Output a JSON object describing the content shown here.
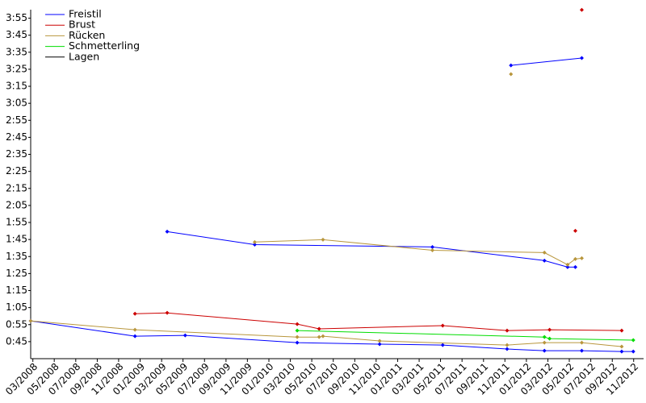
{
  "chart_data": {
    "type": "line",
    "xlim": [
      2008.15,
      2012.91
    ],
    "ylim": [
      35,
      240
    ],
    "xticks": [
      {
        "value": 2008.167,
        "label": "03/2008"
      },
      {
        "value": 2008.333,
        "label": "05/2008"
      },
      {
        "value": 2008.5,
        "label": "07/2008"
      },
      {
        "value": 2008.667,
        "label": "09/2008"
      },
      {
        "value": 2008.833,
        "label": "11/2008"
      },
      {
        "value": 2009.0,
        "label": "01/2009"
      },
      {
        "value": 2009.167,
        "label": "03/2009"
      },
      {
        "value": 2009.333,
        "label": "05/2009"
      },
      {
        "value": 2009.5,
        "label": "07/2009"
      },
      {
        "value": 2009.667,
        "label": "09/2009"
      },
      {
        "value": 2009.833,
        "label": "11/2009"
      },
      {
        "value": 2010.0,
        "label": "01/2010"
      },
      {
        "value": 2010.167,
        "label": "03/2010"
      },
      {
        "value": 2010.333,
        "label": "05/2010"
      },
      {
        "value": 2010.5,
        "label": "07/2010"
      },
      {
        "value": 2010.667,
        "label": "09/2010"
      },
      {
        "value": 2010.833,
        "label": "11/2010"
      },
      {
        "value": 2011.0,
        "label": "01/2011"
      },
      {
        "value": 2011.167,
        "label": "03/2011"
      },
      {
        "value": 2011.333,
        "label": "05/2011"
      },
      {
        "value": 2011.5,
        "label": "07/2011"
      },
      {
        "value": 2011.667,
        "label": "09/2011"
      },
      {
        "value": 2011.833,
        "label": "11/2011"
      },
      {
        "value": 2012.0,
        "label": "01/2012"
      },
      {
        "value": 2012.167,
        "label": "03/2012"
      },
      {
        "value": 2012.333,
        "label": "05/2012"
      },
      {
        "value": 2012.5,
        "label": "07/2012"
      },
      {
        "value": 2012.667,
        "label": "09/2012"
      },
      {
        "value": 2012.833,
        "label": "11/2012"
      }
    ],
    "yticks": [
      {
        "value": 45,
        "label": "0:45"
      },
      {
        "value": 55,
        "label": "0:55"
      },
      {
        "value": 65,
        "label": "1:05"
      },
      {
        "value": 75,
        "label": "1:15"
      },
      {
        "value": 85,
        "label": "1:25"
      },
      {
        "value": 95,
        "label": "1:35"
      },
      {
        "value": 105,
        "label": "1:45"
      },
      {
        "value": 115,
        "label": "1:55"
      },
      {
        "value": 125,
        "label": "2:05"
      },
      {
        "value": 135,
        "label": "2:15"
      },
      {
        "value": 145,
        "label": "2:25"
      },
      {
        "value": 155,
        "label": "2:35"
      },
      {
        "value": 165,
        "label": "2:45"
      },
      {
        "value": 175,
        "label": "2:55"
      },
      {
        "value": 185,
        "label": "3:05"
      },
      {
        "value": 195,
        "label": "3:15"
      },
      {
        "value": 205,
        "label": "3:25"
      },
      {
        "value": 215,
        "label": "3:35"
      },
      {
        "value": 225,
        "label": "3:45"
      },
      {
        "value": 235,
        "label": "3:55"
      }
    ],
    "legend": "upper left",
    "series": [
      {
        "name": "Freistil",
        "color": "#0000ff",
        "x": [
          2009.21,
          2009.89,
          2011.27,
          2012.14,
          2012.32,
          2012.38,
          null,
          2011.88,
          2012.43,
          null,
          2008.15,
          2008.96,
          2009.35,
          2010.22,
          2010.86,
          2011.35,
          2011.85,
          2012.14,
          2012.43,
          2012.74,
          2012.83
        ],
        "values": [
          109.6,
          102,
          100.6,
          92.6,
          88.8,
          88.8,
          null,
          207.3,
          211.6,
          null,
          57.2,
          48.2,
          48.7,
          44.4,
          43.5,
          43,
          40.7,
          39.7,
          39.7,
          39.2,
          39.2
        ]
      },
      {
        "name": "Brust",
        "color": "#cc0000",
        "x": [
          2008.96,
          2009.21,
          2010.22,
          2010.39,
          2011.35,
          2011.85,
          2012.18,
          2012.74,
          null,
          2012.38,
          null,
          2012.43
        ],
        "values": [
          61.4,
          61.9,
          55.3,
          52.5,
          54.4,
          51.5,
          52,
          51.5,
          null,
          110.1,
          null,
          239.9
        ]
      },
      {
        "name": "Rücken",
        "color": "#b8963c",
        "x": [
          2009.89,
          2010.42,
          2011.27,
          2012.14,
          2012.32,
          2012.38,
          2012.43,
          null,
          2011.88,
          null,
          2008.15,
          2008.96,
          2010.22,
          2010.39,
          2010.42,
          2010.86,
          2011.85,
          2012.14,
          2012.43,
          2012.74
        ],
        "values": [
          103.5,
          104.9,
          98.7,
          97.3,
          90.2,
          93.5,
          94,
          null,
          202.1,
          null,
          57.2,
          52,
          47.7,
          47.7,
          48.2,
          45.4,
          43,
          44.4,
          44.4,
          42.1
        ]
      },
      {
        "name": "Schmetterling",
        "color": "#00dd00",
        "x": [
          2010.22,
          2012.14,
          2012.18,
          2012.83
        ],
        "values": [
          51.5,
          47.7,
          46.8,
          45.9
        ]
      },
      {
        "name": "Lagen",
        "color": "#000000",
        "x": [],
        "values": []
      }
    ]
  }
}
